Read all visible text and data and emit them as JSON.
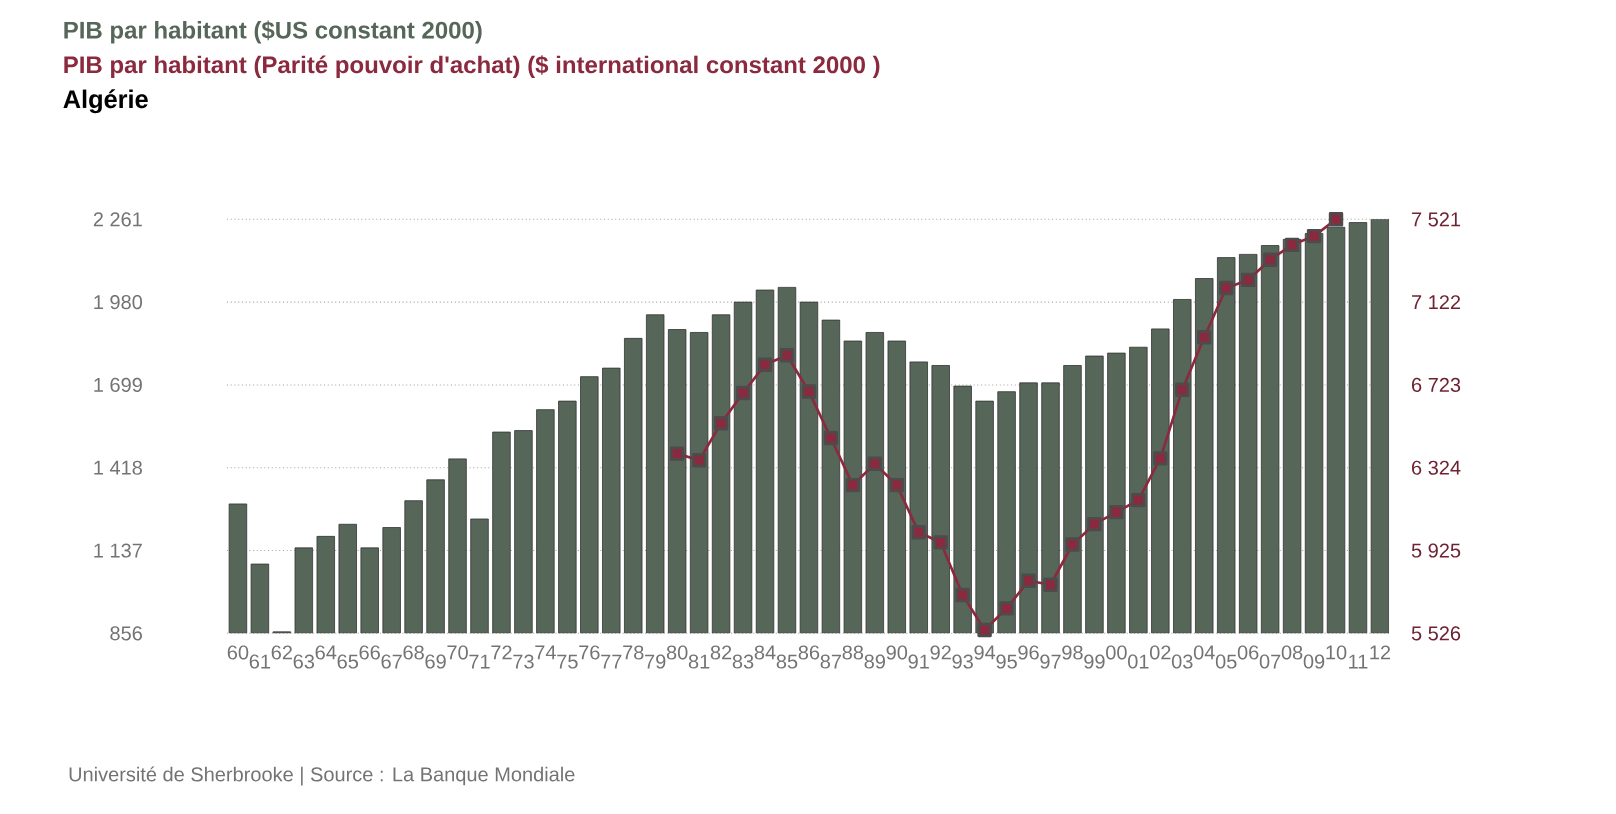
{
  "chart_data": {
    "type": "bar",
    "title": "Algérie",
    "categories": [
      "60",
      "61",
      "62",
      "63",
      "64",
      "65",
      "66",
      "67",
      "68",
      "69",
      "70",
      "71",
      "72",
      "73",
      "74",
      "75",
      "76",
      "77",
      "78",
      "79",
      "80",
      "81",
      "82",
      "83",
      "84",
      "85",
      "86",
      "87",
      "88",
      "89",
      "90",
      "91",
      "92",
      "93",
      "94",
      "95",
      "96",
      "97",
      "98",
      "99",
      "00",
      "01",
      "02",
      "03",
      "04",
      "05",
      "06",
      "07",
      "08",
      "09",
      "10",
      "11",
      "12"
    ],
    "series": [
      {
        "name": "PIB par habitant ($US constant 2000)",
        "color": "#56675a",
        "values": [
          1295,
          1091,
          861,
          1146,
          1185,
          1226,
          1146,
          1215,
          1306,
          1377,
          1448,
          1244,
          1539,
          1544,
          1615,
          1644,
          1727,
          1756,
          1857,
          1937,
          1887,
          1877,
          1937,
          1980,
          2021,
          2030,
          1980,
          1919,
          1848,
          1877,
          1848,
          1777,
          1765,
          1695,
          1644,
          1676,
          1706,
          1706,
          1765,
          1797,
          1807,
          1827,
          1889,
          1989,
          2060,
          2131,
          2142,
          2172,
          2193,
          2213,
          2234,
          2250,
          2261
        ]
      },
      {
        "name": "PIB par habitant (Parité pouvoir d'achat) ($ international constant 2000 )",
        "type": "line",
        "axis": "y2",
        "marker": "square",
        "color": "#8b2a3f",
        "values": [
          null,
          null,
          null,
          null,
          null,
          null,
          null,
          null,
          null,
          null,
          null,
          null,
          null,
          null,
          null,
          null,
          null,
          null,
          null,
          null,
          6392,
          6360,
          6538,
          6684,
          6820,
          6866,
          6691,
          6467,
          6240,
          6343,
          6240,
          6013,
          5964,
          5711,
          5542,
          5646,
          5779,
          5760,
          5954,
          6052,
          6110,
          6168,
          6369,
          6700,
          6953,
          7190,
          7229,
          7326,
          7398,
          7440,
          7521,
          null,
          null
        ]
      }
    ],
    "ylim": [
      856,
      2261
    ],
    "yticks": [
      {
        "value": 856,
        "label": "856"
      },
      {
        "value": 1137,
        "label": "1 137"
      },
      {
        "value": 1418,
        "label": "1 418"
      },
      {
        "value": 1699,
        "label": "1 699"
      },
      {
        "value": 1980,
        "label": "1 980"
      },
      {
        "value": 2261,
        "label": "2 261"
      }
    ],
    "y2lim": [
      5526,
      7521
    ],
    "y2ticks": [
      {
        "value": 5526,
        "label": "5 526"
      },
      {
        "value": 5925,
        "label": "5 925"
      },
      {
        "value": 6324,
        "label": "6 324"
      },
      {
        "value": 6723,
        "label": "6 723"
      },
      {
        "value": 7122,
        "label": "7 122"
      },
      {
        "value": 7521,
        "label": "7 521"
      }
    ],
    "grid": "y",
    "annotations": [
      "Université de Sherbrooke | Source : La Banque Mondiale"
    ]
  }
}
